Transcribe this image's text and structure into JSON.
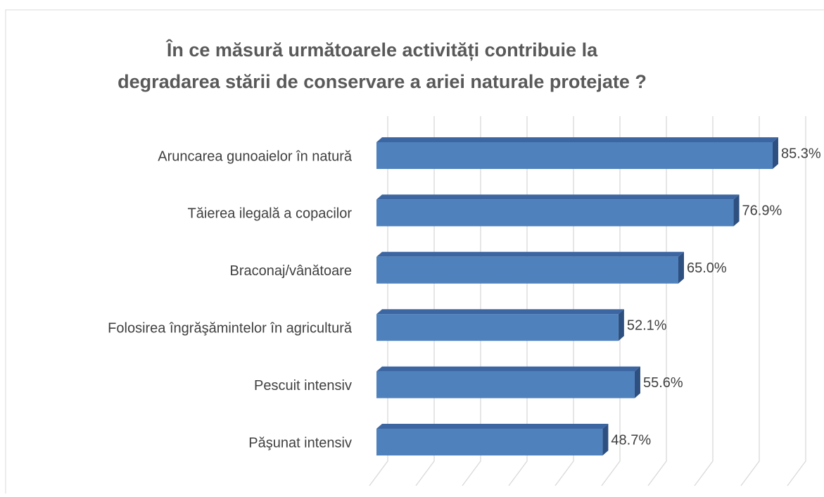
{
  "chart_data": {
    "type": "bar3d_horizontal",
    "title": [
      "În ce măsură următoarele activități contribuie la",
      "degradarea stării de conservare a ariei naturale protejate ?"
    ],
    "categories": [
      "Aruncarea gunoaielor în natură",
      "Tăierea ilegală a copacilor",
      "Braconaj/vânătoare",
      "Folosirea îngrăşămintelor în agricultură",
      "Pescuit intensiv",
      "Păşunat intensiv"
    ],
    "values": [
      85.3,
      76.9,
      65.0,
      52.1,
      55.6,
      48.7
    ],
    "value_labels": [
      "85.3%",
      "76.9%",
      "65.0%",
      "52.1%",
      "55.6%",
      "48.7%"
    ],
    "color": "#4f81bd",
    "xlim": [
      0,
      90
    ],
    "xticks": [
      0,
      10,
      20,
      30,
      40,
      50,
      60,
      70,
      80,
      90
    ],
    "grid": true
  }
}
